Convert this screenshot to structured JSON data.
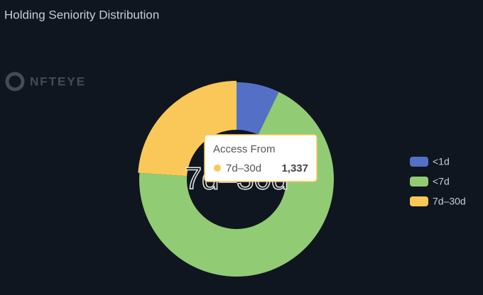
{
  "chart_data": {
    "type": "donut",
    "title": "Holding Seniority Distribution",
    "watermark": "NFTEYE",
    "categories": [
      "<1d",
      "<7d",
      "7d–30d"
    ],
    "values": [
      400,
      3850,
      1337
    ],
    "colors": [
      "#5470c6",
      "#91cc75",
      "#fac858"
    ],
    "legend": "right",
    "tooltip": {
      "title": "Access From",
      "category": 2,
      "value_label": "1,337"
    }
  }
}
